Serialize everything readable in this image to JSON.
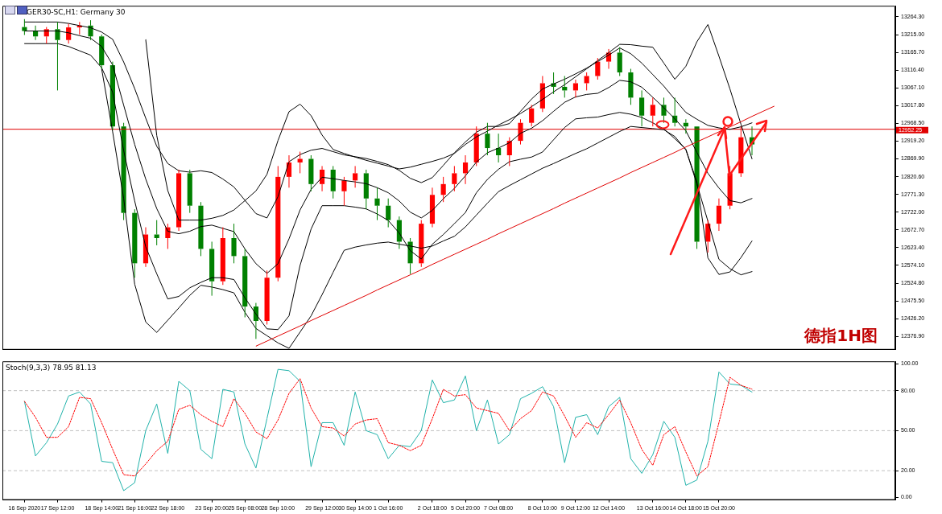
{
  "chart_data": [
    {
      "type": "candlestick",
      "title": "GER30-SC,H1: Germany 30",
      "categories": [
        null,
        null,
        null,
        null,
        null,
        null,
        null,
        null,
        null,
        null,
        null,
        null,
        null,
        null,
        null,
        null,
        null,
        null,
        null,
        null,
        null,
        null,
        null,
        null,
        null,
        null,
        null,
        null,
        null,
        null,
        null,
        null,
        null,
        null,
        null,
        null,
        null,
        null,
        null,
        null,
        null,
        null,
        null,
        null,
        null,
        null,
        null,
        null,
        null,
        null,
        null,
        null,
        null,
        null,
        null,
        null,
        null,
        null,
        null,
        null,
        null,
        null,
        null,
        null,
        null,
        null,
        null,
        null,
        null,
        null,
        null,
        null,
        null,
        null,
        null,
        null,
        null,
        null,
        null,
        null,
        null,
        null
      ],
      "ohlc": [
        null,
        null,
        [
          13236,
          13258,
          13214,
          13225
        ],
        [
          13225,
          13240,
          13200,
          13210
        ],
        [
          13210,
          13236,
          13190,
          13230
        ],
        [
          13230,
          13250,
          13060,
          13200
        ],
        [
          13200,
          13245,
          13190,
          13235
        ],
        [
          13235,
          13250,
          13215,
          13240
        ],
        [
          13240,
          13255,
          13200,
          13210
        ],
        [
          13210,
          13215,
          13120,
          13130
        ],
        [
          13130,
          13140,
          12950,
          12960
        ],
        [
          12960,
          12970,
          12700,
          12720
        ],
        [
          12720,
          12730,
          12540,
          12580
        ],
        [
          12580,
          12680,
          12570,
          12660
        ],
        [
          12660,
          12700,
          12630,
          12650
        ],
        [
          12650,
          12690,
          12620,
          12680
        ],
        [
          12680,
          12840,
          12670,
          12830
        ],
        [
          12830,
          12840,
          12720,
          12740
        ],
        [
          12740,
          12750,
          12600,
          12620
        ],
        [
          12620,
          12640,
          12490,
          12530
        ],
        [
          12530,
          12680,
          12520,
          12650
        ],
        [
          12650,
          12690,
          12580,
          12600
        ],
        [
          12600,
          12620,
          12430,
          12460
        ],
        [
          12460,
          12470,
          12370,
          12420
        ],
        [
          12420,
          12560,
          12410,
          12540
        ],
        [
          12540,
          12850,
          12530,
          12820
        ],
        [
          12820,
          12880,
          12790,
          12860
        ],
        [
          12860,
          12890,
          12830,
          12870
        ],
        [
          12870,
          12880,
          12780,
          12800
        ],
        [
          12800,
          12850,
          12780,
          12840
        ],
        [
          12840,
          12850,
          12760,
          12780
        ],
        [
          12780,
          12820,
          12740,
          12810
        ],
        [
          12810,
          12850,
          12790,
          12830
        ],
        [
          12830,
          12840,
          12730,
          12760
        ],
        [
          12760,
          12790,
          12700,
          12740
        ],
        [
          12740,
          12760,
          12680,
          12700
        ],
        [
          12700,
          12710,
          12620,
          12640
        ],
        [
          12640,
          12650,
          12550,
          12580
        ],
        [
          12580,
          12700,
          12570,
          12690
        ],
        [
          12690,
          12790,
          12680,
          12770
        ],
        [
          12770,
          12820,
          12750,
          12800
        ],
        [
          12800,
          12850,
          12780,
          12830
        ],
        [
          12830,
          12880,
          12800,
          12860
        ],
        [
          12860,
          12960,
          12850,
          12940
        ],
        [
          12940,
          12970,
          12880,
          12900
        ],
        [
          12900,
          12940,
          12860,
          12880
        ],
        [
          12880,
          12930,
          12850,
          12920
        ],
        [
          12920,
          12980,
          12910,
          12970
        ],
        [
          12970,
          13020,
          12960,
          13010
        ],
        [
          13010,
          13100,
          13000,
          13080
        ],
        [
          13080,
          13110,
          13050,
          13070
        ],
        [
          13070,
          13100,
          13040,
          13060
        ],
        [
          13060,
          13090,
          13040,
          13080
        ],
        [
          13080,
          13110,
          13060,
          13100
        ],
        [
          13100,
          13150,
          13090,
          13140
        ],
        [
          13140,
          13175,
          13120,
          13165
        ],
        [
          13165,
          13180,
          13100,
          13110
        ],
        [
          13110,
          13120,
          13020,
          13040
        ],
        [
          13040,
          13060,
          12960,
          12990
        ],
        [
          12990,
          13040,
          12960,
          13020
        ],
        [
          13020,
          13040,
          12970,
          12990
        ],
        [
          12990,
          13040,
          12960,
          12970
        ],
        [
          12970,
          12980,
          12940,
          12960
        ],
        [
          12960,
          12960,
          12620,
          12640
        ],
        [
          12640,
          12700,
          12610,
          12690
        ],
        [
          12690,
          12760,
          12670,
          12740
        ],
        [
          12740,
          12850,
          12730,
          12830
        ],
        [
          12830,
          12960,
          12820,
          12930
        ],
        [
          12930,
          12960,
          12880,
          12910
        ],
        null,
        null,
        null,
        null,
        null,
        null,
        null,
        null,
        null,
        null,
        null,
        null,
        null
      ],
      "colors": [
        null,
        null,
        "#008000",
        "#008000",
        "#ff0000",
        "#008000",
        "#ff0000",
        "#ff0000",
        "#008000",
        "#008000",
        "#008000",
        "#008000",
        "#008000",
        "#ff0000",
        "#008000",
        "#ff0000",
        "#ff0000",
        "#008000",
        "#008000",
        "#008000",
        "#ff0000",
        "#008000",
        "#008000",
        "#008000",
        "#ff0000",
        "#ff0000",
        "#ff0000",
        "#ff0000",
        "#008000",
        "#ff0000",
        "#008000",
        "#ff0000",
        "#ff0000",
        "#008000",
        "#008000",
        "#008000",
        "#008000",
        "#008000",
        "#ff0000",
        "#ff0000",
        "#ff0000",
        "#ff0000",
        "#ff0000",
        "#ff0000",
        "#008000",
        "#008000",
        "#ff0000",
        "#ff0000",
        "#ff0000",
        "#ff0000",
        "#008000",
        "#008000",
        "#ff0000",
        "#ff0000",
        "#ff0000",
        "#ff0000",
        "#008000",
        "#008000",
        "#008000",
        "#ff0000",
        "#008000",
        "#008000",
        "#008000",
        "#008000",
        "#ff0000",
        "#ff0000",
        "#ff0000",
        "#ff0000",
        "#008000",
        null,
        null,
        null,
        null,
        null,
        null,
        null,
        null,
        null,
        null,
        null,
        null,
        null
      ],
      "series": [
        {
          "type": "line",
          "color": "#000000",
          "values": [
            null,
            null,
            13250,
            13250,
            13250,
            13250,
            13246,
            13240,
            13234,
            13222,
            13202,
            13139,
            13065,
            12983,
            12905,
            12857,
            12837,
            12833,
            12837,
            12832,
            12814,
            12792,
            12755,
            12718,
            12706,
            12765,
            12862,
            12882,
            12894,
            12899,
            12890,
            12881,
            12876,
            12871,
            12863,
            12854,
            12838,
            12816,
            12804,
            12818,
            12852,
            12887,
            12917,
            12944,
            12960,
            12960,
            12968,
            13002,
            13036,
            13064,
            13078,
            13091,
            13106,
            13122,
            13140,
            13158,
            13178,
            13162,
            13136,
            13104,
            13072,
            13035,
            12999,
            12980,
            12963,
            12956,
            12952,
            12959,
            12970,
            null,
            null,
            null,
            null,
            null,
            null,
            null,
            null,
            null,
            null,
            null,
            null,
            null
          ]
        },
        {
          "type": "line",
          "color": "#000000",
          "values": [
            null,
            null,
            13225,
            13225,
            13225,
            13225,
            13220,
            13212,
            13205,
            13182,
            13131,
            13019,
            12910,
            12814,
            12732,
            12669,
            12662,
            12669,
            12682,
            12686,
            12677,
            12668,
            12620,
            12579,
            12552,
            12579,
            12648,
            12728,
            12785,
            12819,
            12815,
            12810,
            12806,
            12801,
            12790,
            12776,
            12753,
            12722,
            12706,
            12727,
            12759,
            12788,
            12823,
            12861,
            12887,
            12900,
            12915,
            12941,
            12955,
            12976,
            13002,
            13027,
            13042,
            13049,
            13052,
            13068,
            13088,
            13084,
            13069,
            13041,
            13012,
            12981,
            12948,
            12888,
            12830,
            12789,
            12754,
            12748,
            12760,
            null,
            null,
            null,
            null,
            null,
            null,
            null,
            null,
            null,
            null,
            null,
            null,
            null
          ]
        },
        {
          "type": "line",
          "color": "#000000",
          "values": [
            null,
            null,
            13190,
            13190,
            13190,
            13190,
            13182,
            13170,
            13158,
            13123,
            13055,
            12893,
            12753,
            12626,
            12551,
            12481,
            12488,
            12512,
            12527,
            12540,
            12540,
            12535,
            12484,
            12439,
            12398,
            12396,
            12434,
            12574,
            12675,
            12740,
            12740,
            12740,
            12736,
            12731,
            12717,
            12699,
            12664,
            12615,
            12592,
            12633,
            12660,
            12690,
            12721,
            12776,
            12813,
            12841,
            12862,
            12869,
            12875,
            12889,
            12923,
            12957,
            12981,
            12984,
            12986,
            12993,
            12999,
            12994,
            12985,
            12970,
            12953,
            12926,
            12897,
            12800,
            12697,
            12591,
            12565,
            12548,
            12557,
            null,
            null,
            null,
            null,
            null,
            null,
            null,
            null,
            null,
            null,
            null,
            null,
            null
          ]
        },
        {
          "type": "line",
          "color": "#000000",
          "values": [
            null,
            null,
            null,
            null,
            null,
            null,
            null,
            null,
            null,
            null,
            null,
            null,
            null,
            13201,
            12935,
            12782,
            12700,
            12700,
            12700,
            12705,
            12713,
            12728,
            12754,
            12781,
            12827,
            12921,
            13001,
            13022,
            12990,
            12936,
            12896,
            12885,
            12875,
            12866,
            12858,
            12850,
            12842,
            12847,
            12855,
            12863,
            12872,
            12885,
            12910,
            12931,
            12947,
            12964,
            12979,
            12996,
            13015,
            13035,
            13056,
            13076,
            13098,
            13120,
            13143,
            13165,
            13188,
            13187,
            13183,
            13180,
            13136,
            13091,
            13127,
            13195,
            13243,
            13155,
            13064,
            12966,
            12870,
            null,
            null,
            null,
            null,
            null,
            null,
            null,
            null,
            null,
            null,
            null,
            null,
            null
          ]
        },
        {
          "type": "line",
          "color": "#000000",
          "values": [
            null,
            null,
            null,
            null,
            null,
            null,
            null,
            null,
            null,
            13120,
            12945,
            12760,
            12522,
            12417,
            12388,
            12422,
            12456,
            12491,
            12519,
            12514,
            12507,
            12498,
            12444,
            12399,
            12379,
            12359,
            12344,
            12389,
            12434,
            12493,
            12555,
            12616,
            12625,
            12631,
            12636,
            12639,
            12633,
            12628,
            12622,
            12628,
            12642,
            12655,
            12681,
            12714,
            12747,
            12779,
            12796,
            12812,
            12828,
            12844,
            12857,
            12871,
            12885,
            12898,
            12914,
            12930,
            12946,
            12960,
            12957,
            12954,
            12951,
            12932,
            12895,
            12807,
            12595,
            12549,
            12556,
            12596,
            12642,
            null,
            null,
            null,
            null,
            null,
            null,
            null,
            null,
            null,
            null,
            null,
            null,
            null
          ]
        },
        {
          "type": "line",
          "color": "#e00000",
          "values": [
            null,
            null,
            null,
            null,
            null,
            null,
            null,
            null,
            null,
            null,
            null,
            null,
            null,
            null,
            null,
            null,
            null,
            null,
            null,
            null,
            null,
            null,
            null,
            12350,
            12364,
            12378,
            12392,
            12406,
            12421,
            12435,
            12449,
            12463,
            12477,
            12491,
            12506,
            12520,
            12534,
            12548,
            12562,
            12577,
            12591,
            12605,
            12619,
            12633,
            12647,
            12662,
            12676,
            12690,
            12704,
            12718,
            12732,
            12747,
            12761,
            12775,
            12789,
            12803,
            12817,
            12832,
            12846,
            12860,
            12874,
            12888,
            12903,
            12917,
            12931,
            12945,
            12959,
            12973,
            12988,
            13002,
            13016,
            null,
            null,
            null,
            null,
            null,
            null,
            null,
            null,
            null,
            null,
            null
          ]
        }
      ],
      "ylim": [
        12340,
        13295
      ],
      "yticks": [
        {
          "value": 12376.9,
          "label": "12376.90"
        },
        {
          "value": 12426.2,
          "label": "12426.20"
        },
        {
          "value": 12475.5,
          "label": "12475.50"
        },
        {
          "value": 12524.8,
          "label": "12524.80"
        },
        {
          "value": 12574.1,
          "label": "12574.10"
        },
        {
          "value": 12623.4,
          "label": "12623.40"
        },
        {
          "value": 12672.7,
          "label": "12672.70"
        },
        {
          "value": 12722,
          "label": "12722.00"
        },
        {
          "value": 12771.3,
          "label": "12771.30"
        },
        {
          "value": 12820.6,
          "label": "12820.60"
        },
        {
          "value": 12869.9,
          "label": "12869.90"
        },
        {
          "value": 12919.2,
          "label": "12919.20"
        },
        {
          "value": 12968.5,
          "label": "12968.50"
        },
        {
          "value": 13017.8,
          "label": "13017.80"
        },
        {
          "value": 13067.1,
          "label": "13067.10"
        },
        {
          "value": 13116.4,
          "label": "13116.40"
        },
        {
          "value": 13165.7,
          "label": "13165.70"
        },
        {
          "value": 13215,
          "label": "13215.00"
        },
        {
          "value": 13264.3,
          "label": "13264.30"
        }
      ],
      "tick_labels": "y",
      "ref_lines": [
        {
          "axis": "y",
          "value": 12952.25,
          "label": "12952.25",
          "color": "#e00000"
        }
      ],
      "annotations": [
        "德指1H图"
      ]
    },
    {
      "type": "line",
      "title": "Stoch(9,3,3) 78.95 81.13",
      "categories": [
        null,
        null,
        "16 Sep 2020",
        null,
        null,
        "17 Sep 12:00",
        null,
        null,
        null,
        "18 Sep 14:00",
        null,
        null,
        "21 Sep 16:00",
        null,
        null,
        "22 Sep 18:00",
        null,
        null,
        null,
        "23 Sep 20:00",
        null,
        null,
        "25 Sep 08:00",
        null,
        null,
        "28 Sep 10:00",
        null,
        null,
        null,
        "29 Sep 12:00",
        null,
        null,
        "30 Sep 14:00",
        null,
        null,
        "1 Oct 16:00",
        null,
        null,
        null,
        "2 Oct 18:00",
        null,
        null,
        "5 Oct 20:00",
        null,
        null,
        "7 Oct 08:00",
        null,
        null,
        null,
        "8 Oct 10:00",
        null,
        null,
        "9 Oct 12:00",
        null,
        null,
        "12 Oct 14:00",
        null,
        null,
        null,
        "13 Oct 16:00",
        null,
        null,
        "14 Oct 18:00",
        null,
        null,
        "15 Oct 20:00",
        null,
        null,
        null,
        null,
        null,
        null,
        null,
        null,
        null,
        null,
        null,
        null,
        null,
        null,
        null,
        null
      ],
      "series": [
        {
          "color": "#20b2aa",
          "line_style": "solid",
          "values": [
            null,
            null,
            72,
            31,
            41,
            55,
            76,
            79,
            70,
            27,
            26,
            5,
            11,
            50,
            70,
            33,
            87,
            80,
            36,
            29,
            81,
            79,
            40,
            22,
            59,
            96,
            95,
            87,
            23,
            56,
            56,
            39,
            79,
            50,
            47,
            29,
            39,
            38,
            50,
            88,
            71,
            73,
            91,
            50,
            73,
            40,
            47,
            74,
            78,
            83,
            68,
            26,
            60,
            62,
            47,
            68,
            75,
            29,
            18,
            32,
            57,
            45,
            9,
            13,
            42,
            94,
            85,
            84,
            78.95,
            null,
            null,
            null,
            null,
            null,
            null,
            null,
            null,
            null,
            null,
            null,
            null,
            null
          ]
        },
        {
          "color": "#ff0000",
          "line_style": "dotted",
          "values": [
            null,
            null,
            72,
            60,
            45,
            45,
            53,
            75,
            74,
            56,
            36,
            17,
            16,
            25,
            35,
            42,
            66,
            69,
            62,
            57,
            53,
            74,
            63,
            49,
            44,
            58,
            78,
            89,
            67,
            53,
            52,
            46,
            55,
            58,
            59,
            41,
            39,
            35,
            39,
            59,
            81,
            76,
            77,
            67,
            65,
            63,
            50,
            59,
            65,
            79,
            76,
            61,
            45,
            56,
            52,
            62,
            73,
            56,
            36,
            24,
            47,
            53,
            34,
            16,
            23,
            56,
            90,
            84,
            81.13,
            null,
            null,
            null,
            null,
            null,
            null,
            null,
            null,
            null,
            null,
            null,
            null,
            null
          ]
        }
      ],
      "ylim": [
        -2,
        102
      ],
      "yticks": [
        {
          "value": 0,
          "label": "0.00"
        },
        {
          "value": 20,
          "label": "20.00"
        },
        {
          "value": 50,
          "label": "50.00"
        },
        {
          "value": 80,
          "label": "80.00"
        },
        {
          "value": 100,
          "label": "100.00"
        }
      ],
      "marker": "none",
      "ref_lines": [
        {
          "axis": "y",
          "value": 80,
          "label": null,
          "color": "#c0c0c0",
          "line_style": "dashed"
        },
        {
          "axis": "y",
          "value": 50,
          "label": null,
          "color": "#c0c0c0",
          "line_style": "dashed"
        },
        {
          "axis": "y",
          "value": 20,
          "label": null,
          "color": "#c0c0c0",
          "line_style": "dashed"
        }
      ]
    }
  ]
}
